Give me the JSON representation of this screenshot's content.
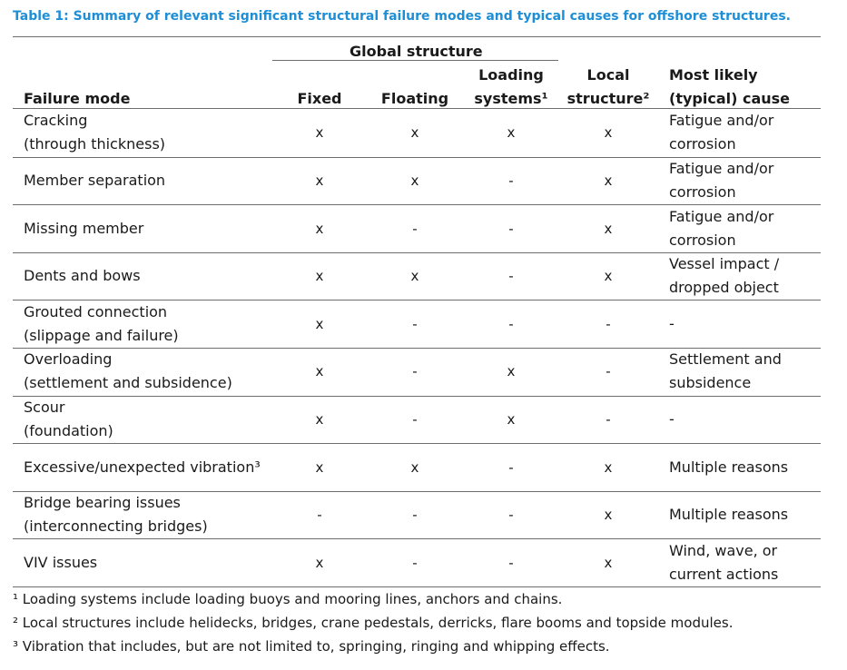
{
  "caption": "Table 1: Summary of relevant significant structural failure modes and typical causes for offshore structures.",
  "header": {
    "group": "Global structure",
    "failure_mode": "Failure mode",
    "fixed": "Fixed",
    "floating": "Floating",
    "loading_line1": "Loading",
    "loading_line2": "systems¹",
    "local_line1": "Local",
    "local_line2": "structure²",
    "cause_line1": "Most likely",
    "cause_line2": "(typical) cause"
  },
  "rows": [
    {
      "mode": [
        "Cracking",
        "(through thickness)"
      ],
      "fixed": "x",
      "floating": "x",
      "loading": "x",
      "local": "x",
      "cause": [
        "Fatigue and/or",
        "corrosion"
      ]
    },
    {
      "mode": [
        "Member separation"
      ],
      "fixed": "x",
      "floating": "x",
      "loading": "-",
      "local": "x",
      "cause": [
        "Fatigue and/or",
        "corrosion"
      ]
    },
    {
      "mode": [
        "Missing member"
      ],
      "fixed": "x",
      "floating": "-",
      "loading": "-",
      "local": "x",
      "cause": [
        "Fatigue and/or",
        "corrosion"
      ]
    },
    {
      "mode": [
        "Dents and bows"
      ],
      "fixed": "x",
      "floating": "x",
      "loading": "-",
      "local": "x",
      "cause": [
        "Vessel impact /",
        "dropped object"
      ]
    },
    {
      "mode": [
        "Grouted connection",
        "(slippage and failure)"
      ],
      "fixed": "x",
      "floating": "-",
      "loading": "-",
      "local": "-",
      "cause": [
        "-"
      ]
    },
    {
      "mode": [
        "Overloading",
        "(settlement and subsidence)"
      ],
      "fixed": "x",
      "floating": "-",
      "loading": "x",
      "local": "-",
      "cause": [
        "Settlement and",
        "subsidence"
      ]
    },
    {
      "mode": [
        "Scour",
        "(foundation)"
      ],
      "fixed": "x",
      "floating": "-",
      "loading": "x",
      "local": "-",
      "cause": [
        "-"
      ]
    },
    {
      "mode": [
        "Excessive/unexpected vibration³"
      ],
      "fixed": "x",
      "floating": "x",
      "loading": "-",
      "local": "x",
      "cause": [
        "Multiple reasons"
      ]
    },
    {
      "mode": [
        "Bridge bearing issues",
        "(interconnecting bridges)"
      ],
      "fixed": "-",
      "floating": "-",
      "loading": "-",
      "local": "x",
      "cause": [
        "Multiple reasons"
      ]
    },
    {
      "mode": [
        "VIV issues"
      ],
      "fixed": "x",
      "floating": "-",
      "loading": "-",
      "local": "x",
      "cause": [
        "Wind, wave, or",
        "current actions"
      ]
    }
  ],
  "footnotes": [
    "¹ Loading systems include loading buoys and mooring lines, anchors and chains.",
    "² Local structures include helidecks, bridges, crane pedestals, derricks, flare booms and topside modules.",
    "³ Vibration that includes, but are not limited to, springing, ringing and whipping effects."
  ]
}
